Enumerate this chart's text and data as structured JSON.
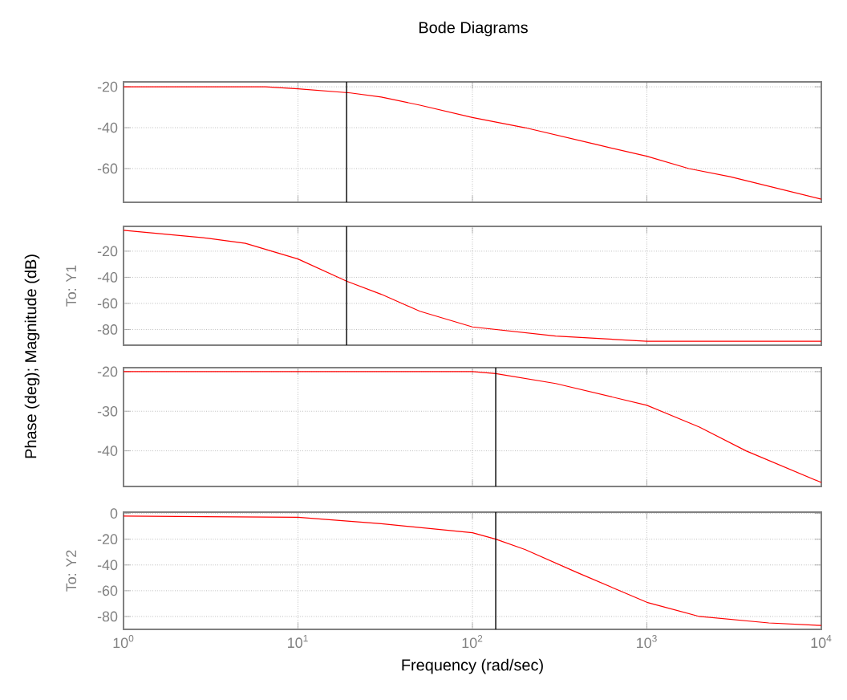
{
  "chart_data": [
    {
      "type": "line",
      "title": "Bode Diagrams",
      "ylabel": "Phase (deg); Magnitude (dB)",
      "color": "#ff0000",
      "x": [
        1,
        3,
        6.5,
        10,
        20,
        30,
        50,
        100,
        200,
        500,
        1000,
        1740,
        3000,
        10000
      ],
      "values": [
        -20,
        -20,
        -20,
        -21,
        -23,
        -25,
        -29,
        -35,
        -40,
        -48,
        -54,
        -60,
        -64,
        -75
      ],
      "log": "x",
      "xlim": [
        1,
        10000
      ],
      "ylim": [
        -76.5,
        -17.6
      ],
      "xticks": [
        {
          "value": 1,
          "label": null
        },
        {
          "value": 10,
          "label": null
        },
        {
          "value": 100,
          "label": null
        },
        {
          "value": 1000,
          "label": null
        },
        {
          "value": 10000,
          "label": null
        }
      ],
      "yticks": [
        -60,
        -40,
        -20
      ],
      "grid": true,
      "tick_labels": "y",
      "ref_lines": [
        {
          "axis": "x",
          "value": 19,
          "color": "#000000"
        }
      ]
    },
    {
      "type": "line",
      "annotations": [
        "To: Y1"
      ],
      "color": "#ff0000",
      "x": [
        1,
        3,
        5,
        10,
        19,
        30,
        50,
        100,
        300,
        1000,
        10000
      ],
      "values": [
        -4,
        -10,
        -14,
        -26,
        -43,
        -53,
        -66,
        -78,
        -85,
        -89,
        -89
      ],
      "log": "x",
      "xlim": [
        1,
        10000
      ],
      "ylim": [
        -92,
        -1
      ],
      "xticks": [
        {
          "value": 1,
          "label": null
        },
        {
          "value": 10,
          "label": null
        },
        {
          "value": 100,
          "label": null
        },
        {
          "value": 1000,
          "label": null
        },
        {
          "value": 10000,
          "label": null
        }
      ],
      "yticks": [
        -80,
        -60,
        -40,
        -20
      ],
      "grid": true,
      "tick_labels": "y",
      "ref_lines": [
        {
          "axis": "x",
          "value": 19,
          "color": "#000000"
        }
      ]
    },
    {
      "type": "line",
      "color": "#ff0000",
      "x": [
        1,
        10,
        100,
        136,
        300,
        1000,
        2000,
        3700,
        10000
      ],
      "values": [
        -20,
        -20,
        -20,
        -20.5,
        -23,
        -28.5,
        -34,
        -40,
        -48
      ],
      "log": "x",
      "xlim": [
        1,
        10000
      ],
      "ylim": [
        -49,
        -19
      ],
      "xticks": [
        {
          "value": 1,
          "label": null
        },
        {
          "value": 10,
          "label": null
        },
        {
          "value": 100,
          "label": null
        },
        {
          "value": 1000,
          "label": null
        },
        {
          "value": 10000,
          "label": null
        }
      ],
      "yticks": [
        -40,
        -30,
        -20
      ],
      "grid": true,
      "tick_labels": "y",
      "ref_lines": [
        {
          "axis": "x",
          "value": 136,
          "color": "#000000"
        }
      ]
    },
    {
      "type": "line",
      "annotations": [
        "To: Y2"
      ],
      "xlabel": "Frequency (rad/sec)",
      "color": "#ff0000",
      "x": [
        1,
        10,
        30,
        100,
        136,
        200,
        400,
        1000,
        2000,
        5000,
        10000
      ],
      "values": [
        -2,
        -3,
        -8,
        -15,
        -20,
        -28,
        -46,
        -69,
        -80,
        -85,
        -87
      ],
      "log": "x",
      "xlim": [
        1,
        10000
      ],
      "ylim": [
        -90,
        1
      ],
      "xticks": [
        {
          "value": 1,
          "label": "10$^{0}$"
        },
        {
          "value": 10,
          "label": "10$^{1}$"
        },
        {
          "value": 100,
          "label": "10$^{2}$"
        },
        {
          "value": 1000,
          "label": "10$^{3}$"
        },
        {
          "value": 10000,
          "label": "10$^{4}$"
        }
      ],
      "yticks": [
        -80,
        -60,
        -40,
        -20,
        0
      ],
      "grid": true,
      "ref_lines": [
        {
          "axis": "x",
          "value": 136,
          "color": "#000000"
        }
      ]
    }
  ]
}
